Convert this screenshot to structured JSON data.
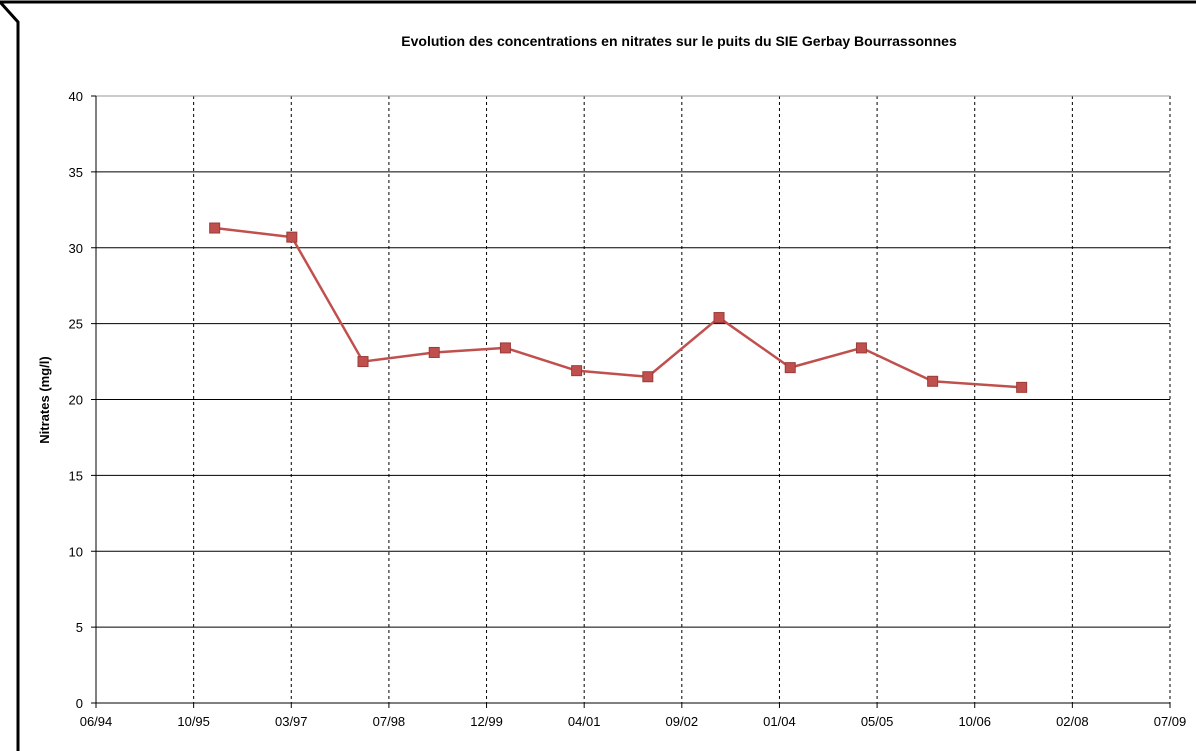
{
  "chart_data": {
    "type": "line",
    "title": "Evolution des concentrations en nitrates sur le puits du SIE Gerbay Bourrassonnes",
    "xlabel": "",
    "ylabel": "Nitrates (mg/l)",
    "x_tick_labels": [
      "06/94",
      "10/95",
      "03/97",
      "07/98",
      "12/99",
      "04/01",
      "09/02",
      "01/04",
      "05/05",
      "10/06",
      "02/08",
      "07/09"
    ],
    "x_range_months": [
      "1994-06",
      "2009-07"
    ],
    "ylim": [
      0,
      40
    ],
    "y_ticks": [
      0,
      5,
      10,
      15,
      20,
      25,
      30,
      35,
      40
    ],
    "grid": {
      "horizontal": "solid",
      "vertical": "dashed"
    },
    "legend": "none",
    "series": [
      {
        "color": "#c0504d",
        "marker": "square",
        "points": [
          {
            "x": "1996-02",
            "y": 31.3
          },
          {
            "x": "1997-03",
            "y": 30.7
          },
          {
            "x": "1998-03",
            "y": 22.5
          },
          {
            "x": "1999-03",
            "y": 23.1
          },
          {
            "x": "2000-03",
            "y": 23.4
          },
          {
            "x": "2001-03",
            "y": 21.9
          },
          {
            "x": "2002-03",
            "y": 21.5
          },
          {
            "x": "2003-03",
            "y": 25.4
          },
          {
            "x": "2004-03",
            "y": 22.1
          },
          {
            "x": "2005-03",
            "y": 23.4
          },
          {
            "x": "2006-03",
            "y": 21.2
          },
          {
            "x": "2007-06",
            "y": 20.8
          }
        ]
      }
    ]
  }
}
